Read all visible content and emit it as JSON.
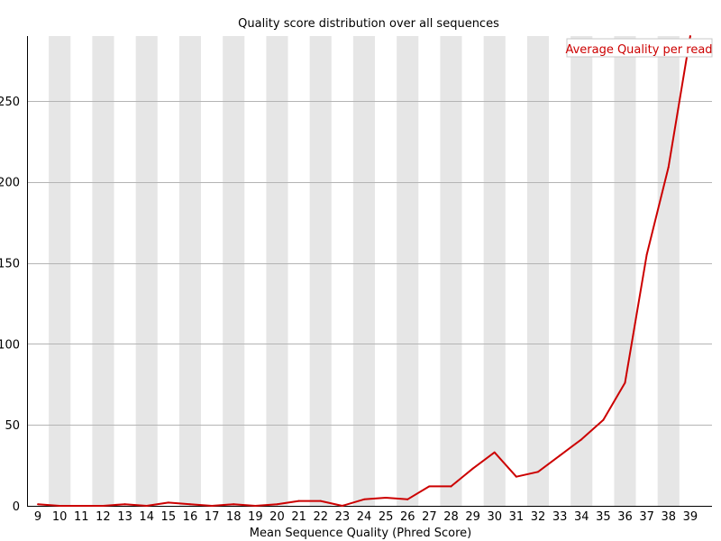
{
  "chart_data": {
    "type": "line",
    "title": "Quality score distribution over all sequences",
    "xlabel": "Mean Sequence Quality (Phred Score)",
    "ylabel": "",
    "x": [
      9,
      10,
      11,
      12,
      13,
      14,
      15,
      16,
      17,
      18,
      19,
      20,
      21,
      22,
      23,
      24,
      25,
      26,
      27,
      28,
      29,
      30,
      31,
      32,
      33,
      34,
      35,
      36,
      37,
      38,
      39
    ],
    "series": [
      {
        "name": "Average Quality per read",
        "color": "#cc0000",
        "values": [
          1,
          0,
          0,
          0,
          1,
          0,
          2,
          1,
          0,
          1,
          0,
          1,
          3,
          3,
          0,
          4,
          5,
          4,
          12,
          12,
          23,
          33,
          18,
          21,
          31,
          41,
          53,
          76,
          155,
          209,
          290
        ]
      }
    ],
    "ylim": [
      0,
      290
    ],
    "yticks": [
      0,
      50,
      100,
      150,
      200,
      250
    ],
    "grid": true,
    "legend_position": "top-right",
    "colors": {
      "band": "#e6e6e6",
      "gridline": "#b4b4b4",
      "line": "#cc0000"
    }
  }
}
